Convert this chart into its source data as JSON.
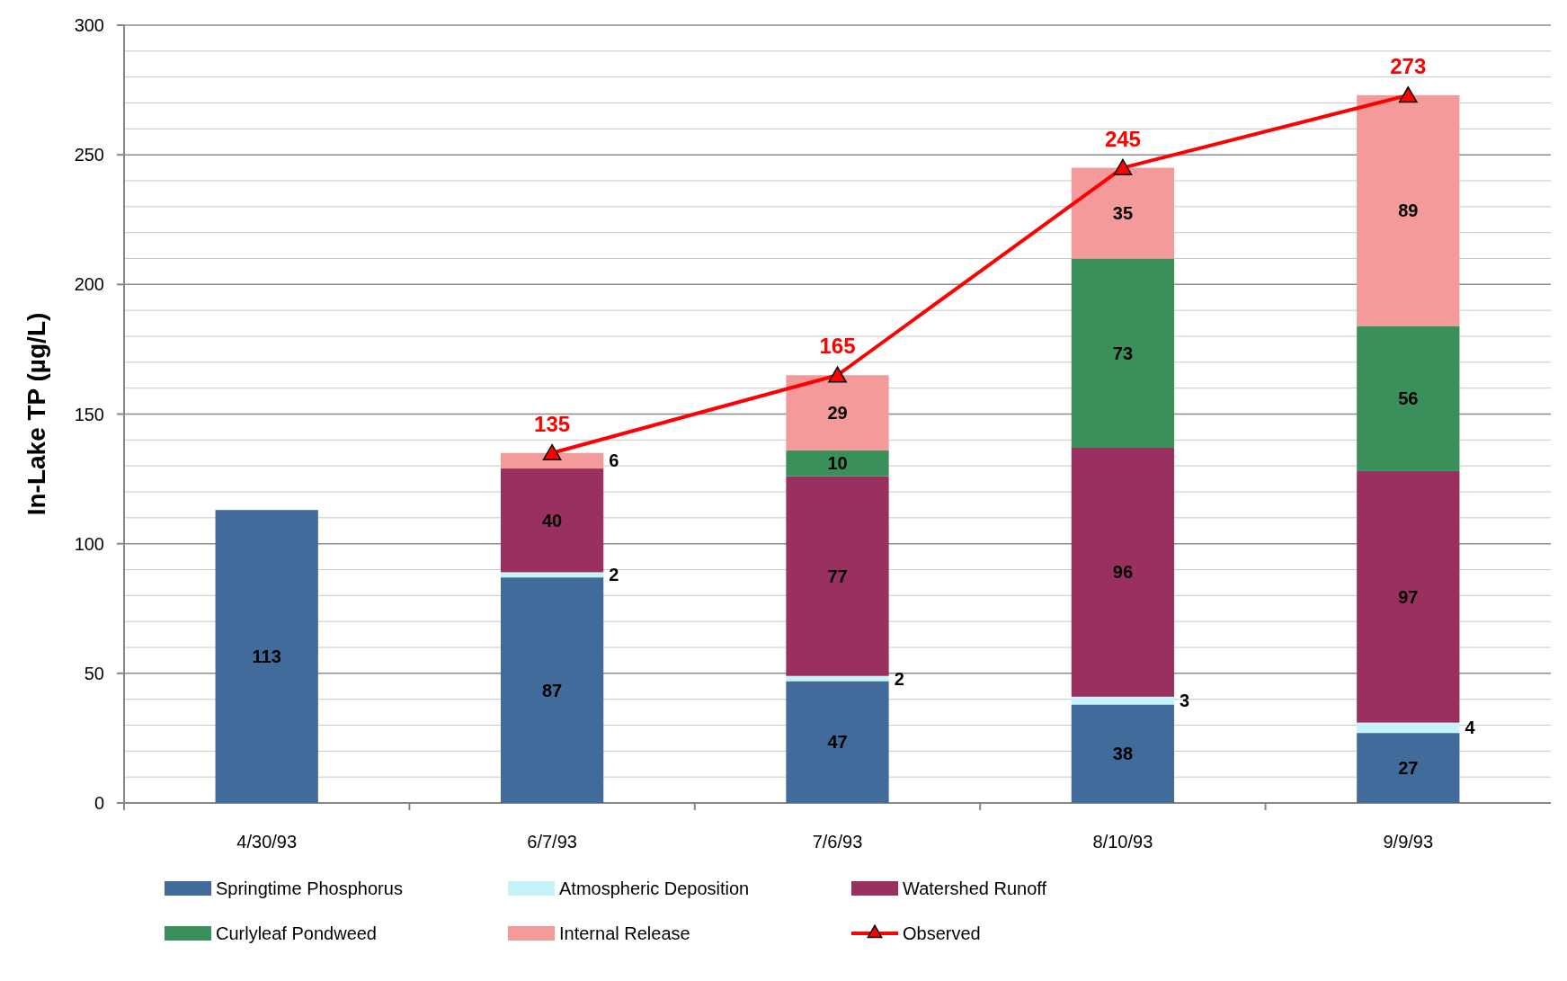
{
  "chart_data": {
    "type": "bar",
    "ylabel": "In-Lake TP (µg/L)",
    "categories": [
      "4/30/93",
      "6/7/93",
      "7/6/93",
      "8/10/93",
      "9/9/93"
    ],
    "stacked": true,
    "ylim": [
      0,
      300
    ],
    "yticks": [
      0,
      {
        "value": 10,
        "label": null
      },
      {
        "value": 20,
        "label": null
      },
      {
        "value": 30,
        "label": null
      },
      {
        "value": 40,
        "label": null
      },
      50,
      {
        "value": 60,
        "label": null
      },
      {
        "value": 70,
        "label": null
      },
      {
        "value": 80,
        "label": null
      },
      {
        "value": 90,
        "label": null
      },
      100,
      {
        "value": 110,
        "label": null
      },
      {
        "value": 120,
        "label": null
      },
      {
        "value": 130,
        "label": null
      },
      {
        "value": 140,
        "label": null
      },
      150,
      {
        "value": 160,
        "label": null
      },
      {
        "value": 170,
        "label": null
      },
      {
        "value": 180,
        "label": null
      },
      {
        "value": 190,
        "label": null
      },
      200,
      {
        "value": 210,
        "label": null
      },
      {
        "value": 220,
        "label": null
      },
      {
        "value": 230,
        "label": null
      },
      {
        "value": 240,
        "label": null
      },
      250,
      {
        "value": 260,
        "label": null
      },
      {
        "value": 270,
        "label": null
      },
      {
        "value": 280,
        "label": null
      },
      {
        "value": 290,
        "label": null
      },
      300
    ],
    "grid": "y",
    "legend": "bottom",
    "series": [
      {
        "name": "Springtime Phosphorus",
        "color": "#416b9b",
        "values": [
          113,
          87,
          47,
          38,
          27
        ],
        "value_labels": [
          "113",
          "87",
          "47",
          "38",
          "27"
        ]
      },
      {
        "name": "Atmospheric Deposition",
        "color": "#c5f3f8",
        "values": [
          null,
          2,
          2,
          3,
          4
        ],
        "value_labels": [
          null,
          "2",
          "2",
          "3",
          "4"
        ]
      },
      {
        "name": "Watershed Runoff",
        "color": "#9a3060",
        "values": [
          null,
          40,
          77,
          96,
          97
        ],
        "value_labels": [
          null,
          "40",
          "77",
          "96",
          "97"
        ]
      },
      {
        "name": "Curlyleaf Pondweed",
        "color": "#3a8f5a",
        "values": [
          null,
          0,
          10,
          73,
          56
        ],
        "value_labels": [
          null,
          null,
          "10",
          "73",
          "56"
        ]
      },
      {
        "name": "Internal Release",
        "color": "#f59a9a",
        "values": [
          null,
          6,
          29,
          35,
          89
        ],
        "value_labels": [
          null,
          "6",
          "29",
          "35",
          "89"
        ]
      },
      {
        "name": "Observed",
        "type": "line",
        "color": "#ff0000",
        "marker": "triangle",
        "values": [
          null,
          135,
          165,
          245,
          273
        ],
        "value_labels": [
          null,
          "135",
          "165",
          "245",
          "273"
        ]
      }
    ]
  }
}
